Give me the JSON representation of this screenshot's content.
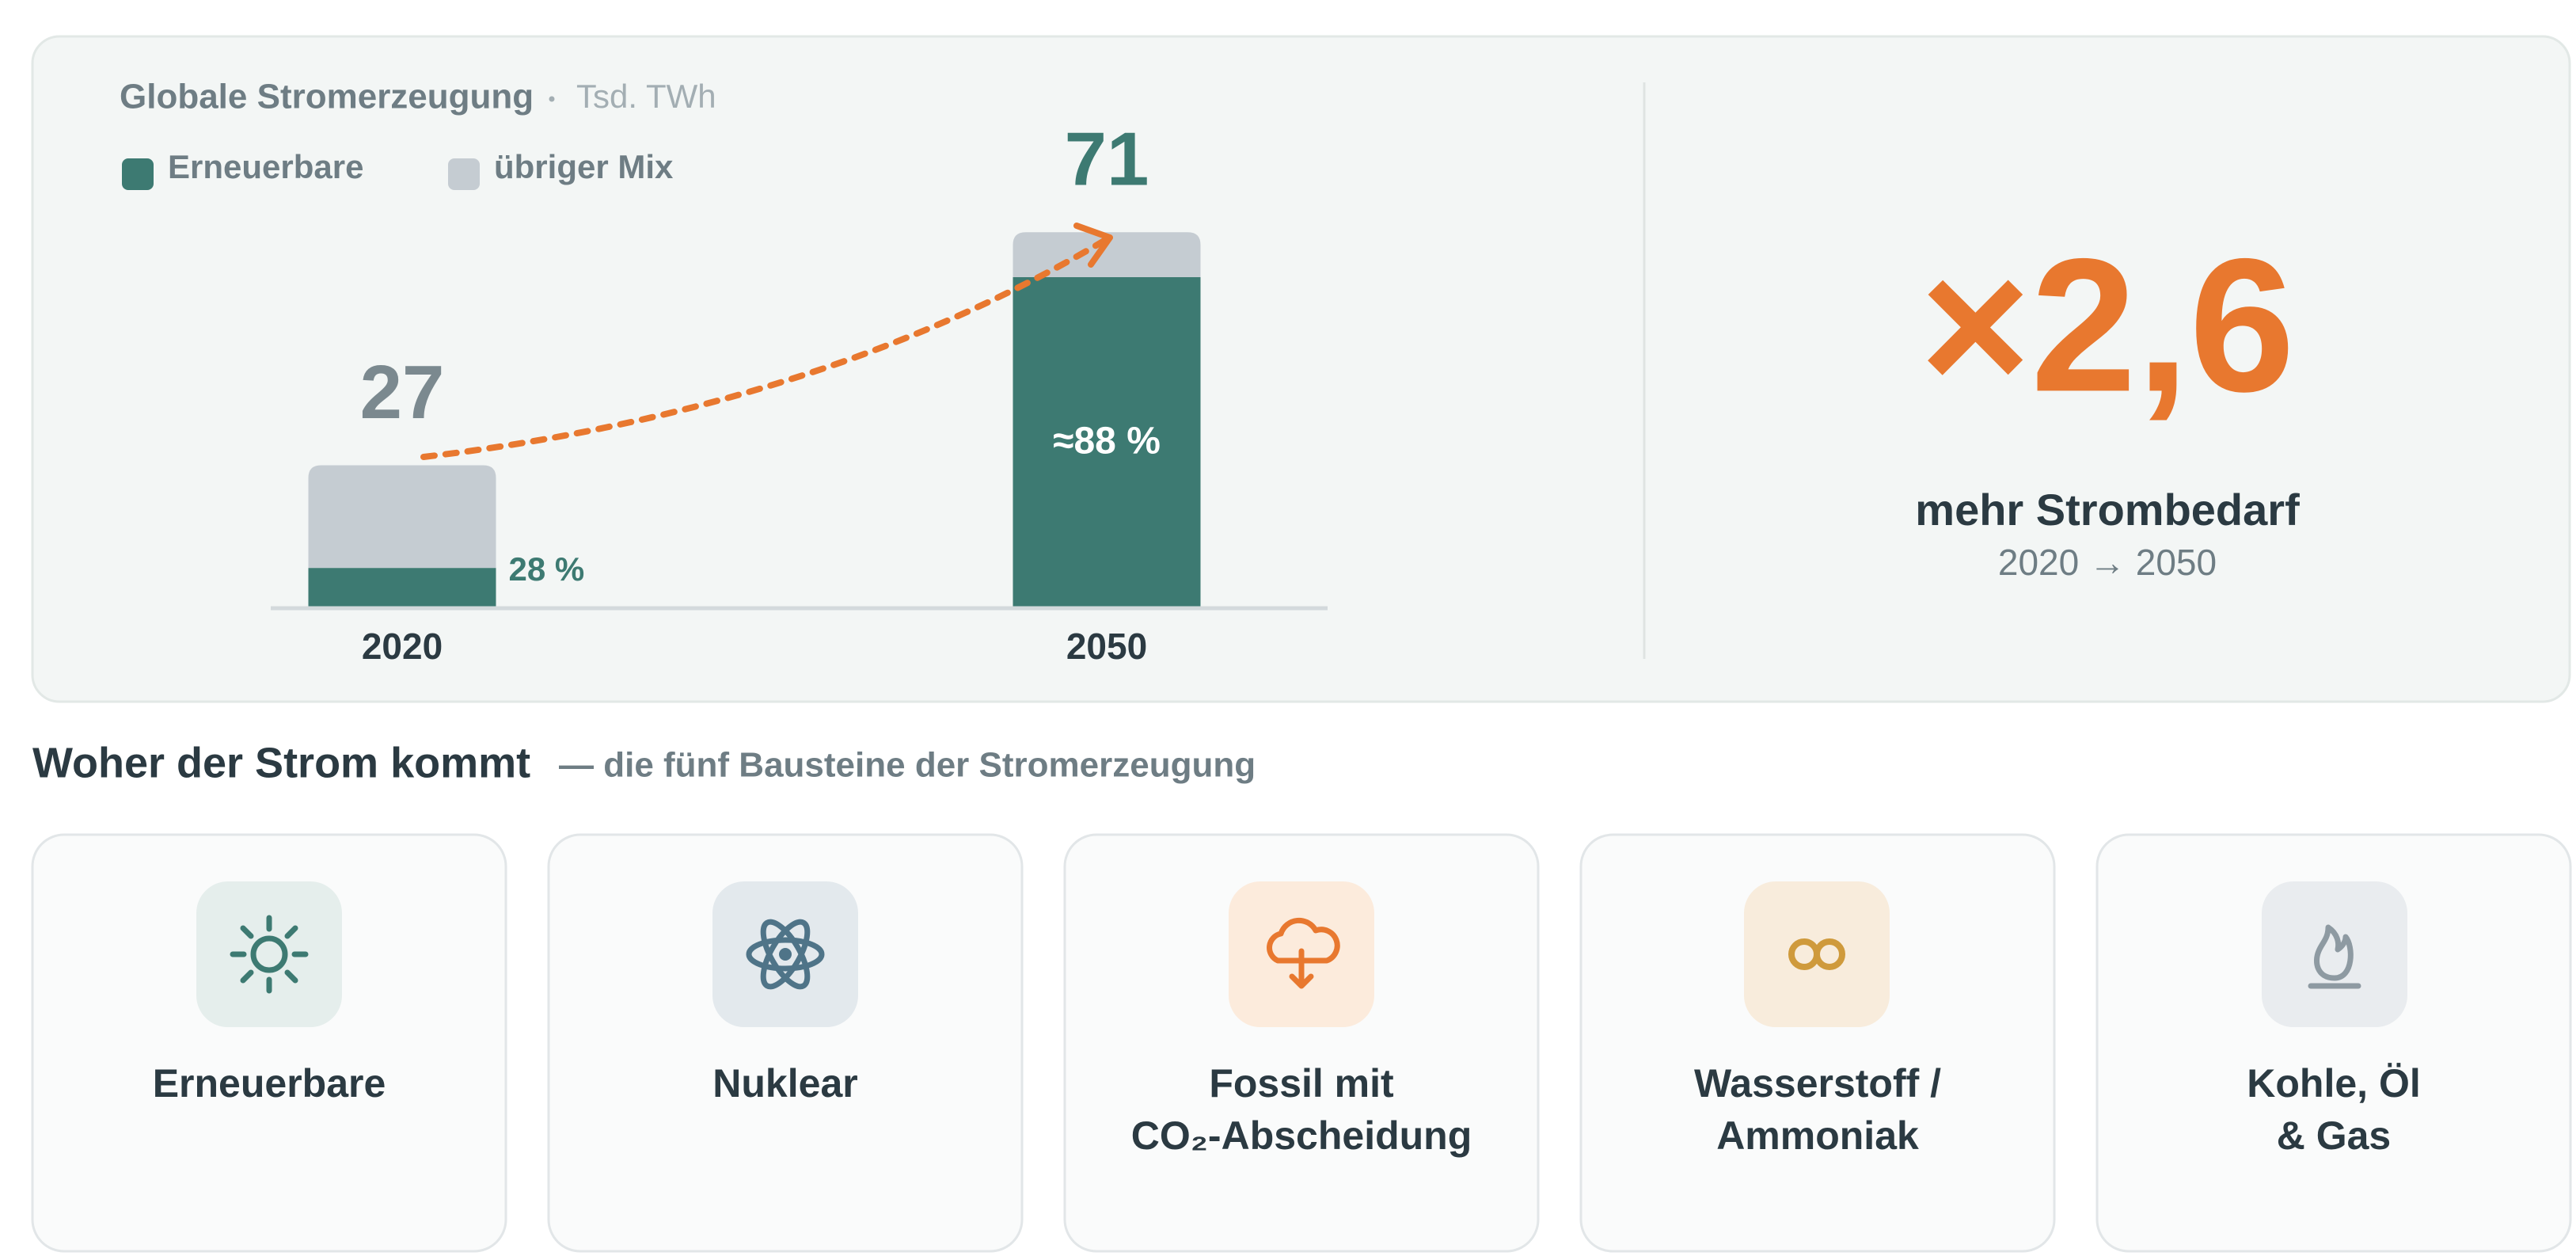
{
  "chart_data": {
    "type": "stacked-bar",
    "title": "Globale Stromerzeugung",
    "unit": "Tsd. TWh",
    "categories": [
      "2020",
      "2050"
    ],
    "series": [
      {
        "name": "Erneuerbare",
        "color": "#3d7a72",
        "values": [
          7.6,
          62.5
        ]
      },
      {
        "name": "übriger Mix",
        "color": "#c5ccd2",
        "values": [
          19.4,
          8.5
        ]
      }
    ],
    "totals": [
      27,
      71
    ],
    "total_colors": [
      "#7b898f",
      "#3d7a72"
    ],
    "share_labels": [
      "28 %",
      "≈88 %"
    ],
    "ylim": [
      0,
      80
    ]
  },
  "kpi": {
    "value_label": "×2,6",
    "label": "mehr Strombedarf",
    "sub": "2020 → 2050"
  },
  "section": {
    "title": "Woher der Strom kommt",
    "subtitle": "— die fünf Bausteine der Stromerzeugung"
  },
  "cards": [
    {
      "lines": [
        "Erneuerbare"
      ]
    },
    {
      "lines": [
        "Nuklear"
      ]
    },
    {
      "lines": [
        "Fossil mit",
        "CO₂-Abscheidung"
      ]
    },
    {
      "lines": [
        "Wasserstoff /",
        "Ammoniak"
      ]
    },
    {
      "lines": [
        "Kohle, Öl",
        "& Gas"
      ]
    }
  ]
}
